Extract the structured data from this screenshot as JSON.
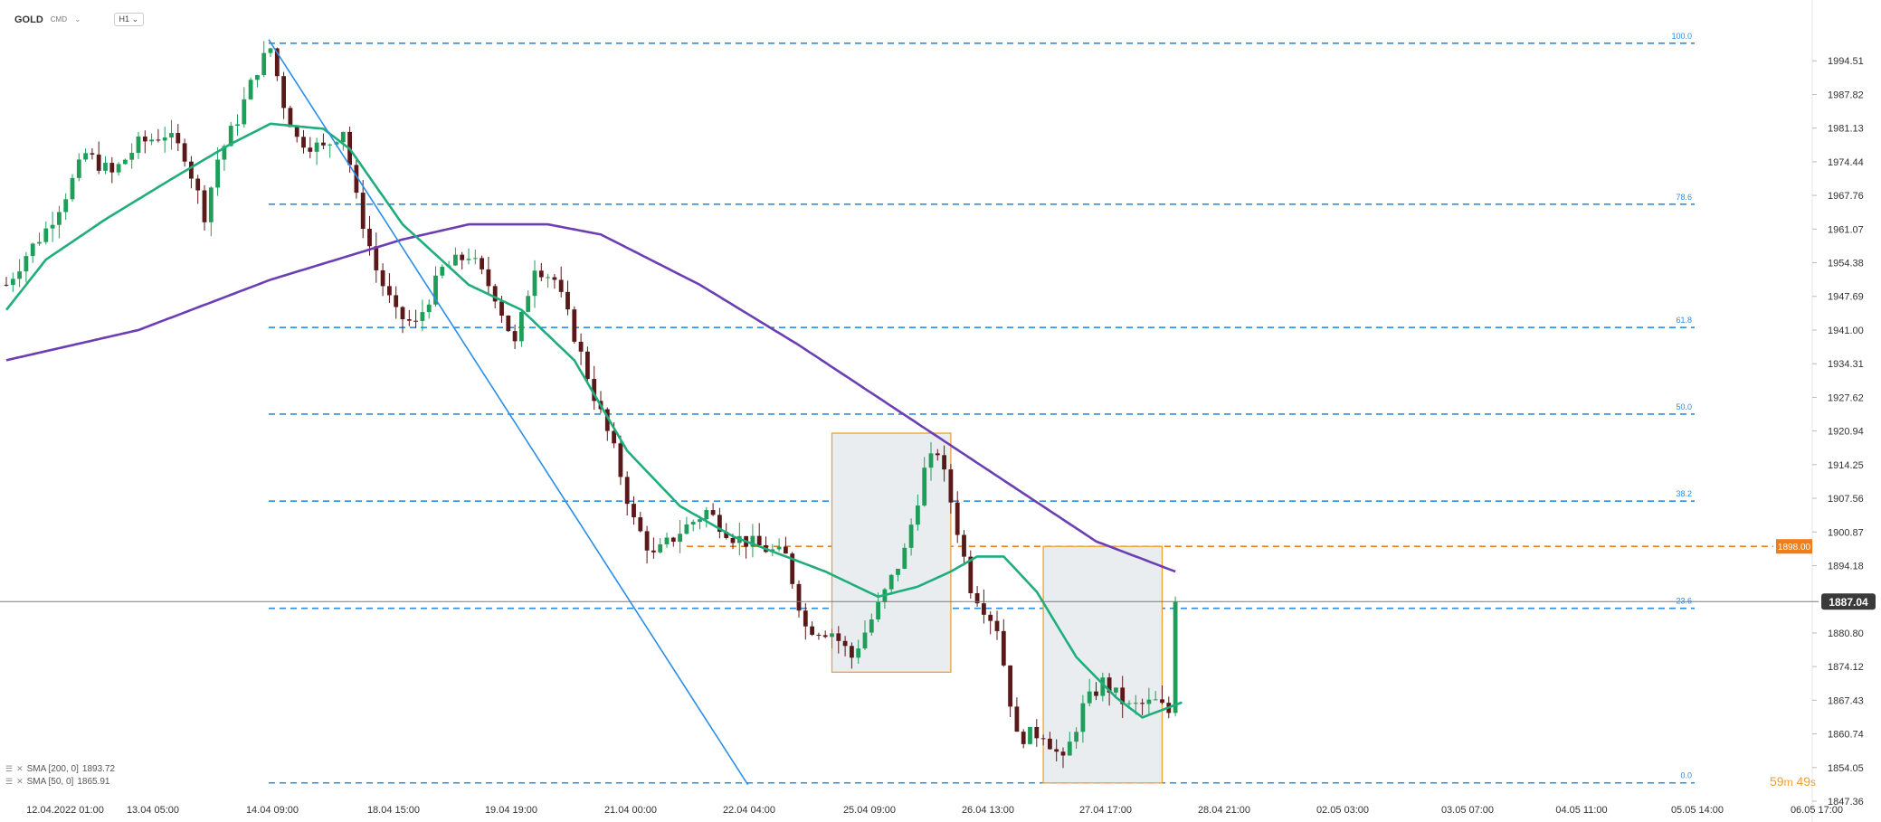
{
  "header": {
    "symbol": "GOLD",
    "type": "CMD",
    "timeframe": "H1"
  },
  "indicators": [
    {
      "label": "SMA [200, 0]",
      "value": "1893.72",
      "color": "#6b3fb3"
    },
    {
      "label": "SMA [50, 0]",
      "value": "1865.91",
      "color": "#1fad7b"
    }
  ],
  "timer": {
    "minutes": "59",
    "m": "m",
    "seconds": "49",
    "s": "s"
  },
  "colors": {
    "up": "#1f9e5a",
    "down": "#5a1818",
    "sma50": "#1fad7b",
    "sma200": "#6b3fb3",
    "fib": "#2a8ee8",
    "trend": "#2a8ee8",
    "resistance": "#f07d1a",
    "box": "#f0a030"
  },
  "chart_data": {
    "type": "candlestick",
    "symbol": "GOLD",
    "ylim": [
      1847.36,
      2001.2
    ],
    "yticks": [
      "1994.51",
      "1987.82",
      "1981.13",
      "1974.44",
      "1967.76",
      "1961.07",
      "1954.38",
      "1947.69",
      "1941.00",
      "1934.31",
      "1927.62",
      "1920.94",
      "1914.25",
      "1907.56",
      "1900.87",
      "1894.18",
      "1880.80",
      "1874.12",
      "1867.43",
      "1860.74",
      "1854.05",
      "1847.36"
    ],
    "xticks": [
      "12.04.2022 01:00",
      "13.04 05:00",
      "14.04 09:00",
      "18.04 15:00",
      "19.04 19:00",
      "21.04 00:00",
      "22.04 04:00",
      "25.04 09:00",
      "26.04 13:00",
      "27.04 17:00",
      "28.04 21:00",
      "02.05 03:00",
      "03.05 07:00",
      "04.05 11:00",
      "05.05 14:00",
      "06.05 17:00"
    ],
    "n_bars": 210,
    "current_price": "1887.04",
    "resistance": {
      "price": 1898.0,
      "label": "1898.00"
    },
    "fibonacci": [
      {
        "level": "100.0",
        "price": 1998.0
      },
      {
        "level": "78.6",
        "price": 1966.0
      },
      {
        "level": "61.8",
        "price": 1941.5
      },
      {
        "level": "50.0",
        "price": 1924.3
      },
      {
        "level": "38.2",
        "price": 1907.0
      },
      {
        "level": "23.6",
        "price": 1885.7
      },
      {
        "level": "0.0",
        "price": 1851.0
      }
    ],
    "trendline": {
      "from": {
        "bar": 40,
        "price": 1998.0
      },
      "to": {
        "bar": 112,
        "price": 1851.0
      }
    },
    "boxes": [
      {
        "bar_start": 125,
        "bar_end": 143,
        "price_low": 1873.0,
        "price_high": 1920.5
      },
      {
        "bar_start": 157,
        "bar_end": 175,
        "price_low": 1851.0,
        "price_high": 1898.0
      }
    ],
    "price_path": [
      [
        0,
        1950
      ],
      [
        3,
        1956
      ],
      [
        6,
        1961
      ],
      [
        9,
        1968
      ],
      [
        12,
        1976
      ],
      [
        16,
        1972
      ],
      [
        20,
        1978
      ],
      [
        24,
        1980
      ],
      [
        27,
        1976
      ],
      [
        30,
        1964
      ],
      [
        32,
        1975
      ],
      [
        35,
        1983
      ],
      [
        38,
        1993
      ],
      [
        40,
        1997
      ],
      [
        42,
        1986
      ],
      [
        44,
        1979
      ],
      [
        48,
        1977
      ],
      [
        51,
        1981
      ],
      [
        53,
        1967
      ],
      [
        56,
        1953
      ],
      [
        59,
        1944
      ],
      [
        62,
        1942
      ],
      [
        66,
        1953
      ],
      [
        70,
        1956
      ],
      [
        74,
        1948
      ],
      [
        77,
        1938
      ],
      [
        80,
        1954
      ],
      [
        83,
        1951
      ],
      [
        86,
        1940
      ],
      [
        89,
        1928
      ],
      [
        92,
        1917
      ],
      [
        95,
        1903
      ],
      [
        98,
        1896
      ],
      [
        102,
        1901
      ],
      [
        106,
        1905
      ],
      [
        110,
        1900
      ],
      [
        114,
        1898
      ],
      [
        118,
        1896
      ],
      [
        121,
        1882
      ],
      [
        125,
        1881
      ],
      [
        128,
        1876
      ],
      [
        132,
        1886
      ],
      [
        136,
        1897
      ],
      [
        139,
        1913
      ],
      [
        141,
        1917
      ],
      [
        143,
        1907
      ],
      [
        146,
        1890
      ],
      [
        150,
        1882
      ],
      [
        153,
        1860
      ],
      [
        157,
        1861
      ],
      [
        160,
        1855
      ],
      [
        163,
        1866
      ],
      [
        166,
        1871
      ],
      [
        170,
        1866
      ],
      [
        174,
        1867
      ],
      [
        176,
        1865
      ],
      [
        177,
        1887
      ]
    ],
    "sma50_path": [
      [
        0,
        1945
      ],
      [
        6,
        1955
      ],
      [
        15,
        1963
      ],
      [
        25,
        1971
      ],
      [
        34,
        1978
      ],
      [
        40,
        1982
      ],
      [
        48,
        1981
      ],
      [
        52,
        1977
      ],
      [
        60,
        1962
      ],
      [
        70,
        1950
      ],
      [
        78,
        1945
      ],
      [
        86,
        1935
      ],
      [
        94,
        1917
      ],
      [
        102,
        1906
      ],
      [
        110,
        1900
      ],
      [
        118,
        1896
      ],
      [
        124,
        1893
      ],
      [
        132,
        1888
      ],
      [
        138,
        1890
      ],
      [
        143,
        1893
      ],
      [
        147,
        1896
      ],
      [
        151,
        1896
      ],
      [
        156,
        1889
      ],
      [
        162,
        1876
      ],
      [
        168,
        1868
      ],
      [
        172,
        1864
      ],
      [
        176,
        1866
      ],
      [
        178,
        1867
      ]
    ],
    "sma200_path": [
      [
        0,
        1935
      ],
      [
        20,
        1941
      ],
      [
        40,
        1951
      ],
      [
        60,
        1959
      ],
      [
        70,
        1962
      ],
      [
        82,
        1962
      ],
      [
        90,
        1960
      ],
      [
        105,
        1950
      ],
      [
        120,
        1938
      ],
      [
        135,
        1925
      ],
      [
        150,
        1912
      ],
      [
        165,
        1899
      ],
      [
        177,
        1893
      ]
    ]
  }
}
